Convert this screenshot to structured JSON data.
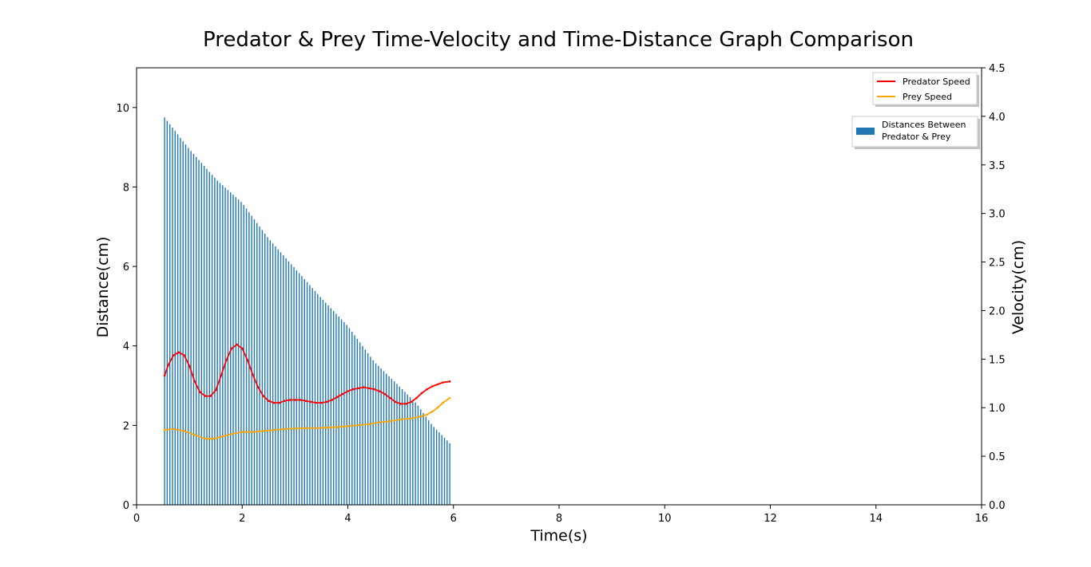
{
  "chart_data": {
    "type": "bar+line",
    "title": "Predator & Prey Time-Velocity and Time-Distance Graph Comparison",
    "xlabel": "Time(s)",
    "ylabel_left": "Distance(cm)",
    "ylabel_right": "Velocity(cm)",
    "xlim": [
      0,
      16
    ],
    "ylim_left": [
      0,
      11
    ],
    "ylim_right": [
      0,
      4.5
    ],
    "x_ticks": [
      "0",
      "2",
      "4",
      "6",
      "8",
      "10",
      "12",
      "14",
      "16"
    ],
    "y_left_ticks": [
      "0",
      "2",
      "4",
      "6",
      "8",
      "10"
    ],
    "y_right_ticks": [
      "0.0",
      "0.5",
      "1.0",
      "1.5",
      "2.0",
      "2.5",
      "3.0",
      "3.5",
      "4.0",
      "4.5"
    ],
    "grid": false,
    "legend_lines_position": "top-right",
    "legend_bars_position": "upper-right",
    "bars": {
      "name": "Distances Between\nPredator & Prey",
      "color": "#1f77b4",
      "x_start": 0.53,
      "x_end": 5.93,
      "x_step": 0.05,
      "distance_keyframes": [
        [
          0.53,
          9.75
        ],
        [
          1.0,
          8.95
        ],
        [
          1.5,
          8.2
        ],
        [
          2.0,
          7.6
        ],
        [
          2.5,
          6.7
        ],
        [
          3.0,
          5.95
        ],
        [
          3.5,
          5.2
        ],
        [
          4.0,
          4.5
        ],
        [
          4.5,
          3.6
        ],
        [
          5.0,
          2.95
        ],
        [
          5.3,
          2.55
        ],
        [
          5.6,
          2.0
        ],
        [
          5.93,
          1.55
        ]
      ]
    },
    "series": [
      {
        "name": "Predator Speed",
        "color": "#ff0000",
        "points": [
          [
            0.53,
            1.33
          ],
          [
            0.6,
            1.44
          ],
          [
            0.7,
            1.54
          ],
          [
            0.8,
            1.57
          ],
          [
            0.9,
            1.54
          ],
          [
            1.0,
            1.43
          ],
          [
            1.1,
            1.27
          ],
          [
            1.2,
            1.16
          ],
          [
            1.3,
            1.12
          ],
          [
            1.4,
            1.12
          ],
          [
            1.5,
            1.18
          ],
          [
            1.6,
            1.33
          ],
          [
            1.7,
            1.49
          ],
          [
            1.8,
            1.61
          ],
          [
            1.9,
            1.65
          ],
          [
            2.0,
            1.61
          ],
          [
            2.1,
            1.49
          ],
          [
            2.2,
            1.34
          ],
          [
            2.3,
            1.21
          ],
          [
            2.4,
            1.12
          ],
          [
            2.5,
            1.07
          ],
          [
            2.6,
            1.05
          ],
          [
            2.7,
            1.05
          ],
          [
            2.8,
            1.07
          ],
          [
            2.9,
            1.08
          ],
          [
            3.0,
            1.08
          ],
          [
            3.1,
            1.08
          ],
          [
            3.2,
            1.07
          ],
          [
            3.3,
            1.06
          ],
          [
            3.4,
            1.05
          ],
          [
            3.5,
            1.05
          ],
          [
            3.6,
            1.06
          ],
          [
            3.7,
            1.08
          ],
          [
            3.8,
            1.11
          ],
          [
            3.9,
            1.14
          ],
          [
            4.0,
            1.17
          ],
          [
            4.1,
            1.19
          ],
          [
            4.2,
            1.2
          ],
          [
            4.3,
            1.21
          ],
          [
            4.4,
            1.2
          ],
          [
            4.5,
            1.19
          ],
          [
            4.6,
            1.17
          ],
          [
            4.7,
            1.14
          ],
          [
            4.8,
            1.1
          ],
          [
            4.9,
            1.06
          ],
          [
            5.0,
            1.04
          ],
          [
            5.1,
            1.04
          ],
          [
            5.2,
            1.06
          ],
          [
            5.3,
            1.1
          ],
          [
            5.4,
            1.15
          ],
          [
            5.5,
            1.19
          ],
          [
            5.6,
            1.22
          ],
          [
            5.7,
            1.24
          ],
          [
            5.8,
            1.26
          ],
          [
            5.93,
            1.27
          ]
        ]
      },
      {
        "name": "Prey Speed",
        "color": "#ffa500",
        "points": [
          [
            0.53,
            0.77
          ],
          [
            0.7,
            0.78
          ],
          [
            0.9,
            0.76
          ],
          [
            1.1,
            0.72
          ],
          [
            1.3,
            0.68
          ],
          [
            1.45,
            0.68
          ],
          [
            1.6,
            0.7
          ],
          [
            1.8,
            0.73
          ],
          [
            2.0,
            0.75
          ],
          [
            2.2,
            0.75
          ],
          [
            2.4,
            0.76
          ],
          [
            2.6,
            0.77
          ],
          [
            2.8,
            0.78
          ],
          [
            3.0,
            0.785
          ],
          [
            3.2,
            0.79
          ],
          [
            3.4,
            0.79
          ],
          [
            3.6,
            0.795
          ],
          [
            3.8,
            0.8
          ],
          [
            4.0,
            0.81
          ],
          [
            4.2,
            0.82
          ],
          [
            4.4,
            0.83
          ],
          [
            4.6,
            0.85
          ],
          [
            4.8,
            0.86
          ],
          [
            5.0,
            0.88
          ],
          [
            5.2,
            0.89
          ],
          [
            5.4,
            0.91
          ],
          [
            5.5,
            0.93
          ],
          [
            5.6,
            0.96
          ],
          [
            5.7,
            1.0
          ],
          [
            5.8,
            1.05
          ],
          [
            5.93,
            1.1
          ]
        ]
      }
    ]
  }
}
